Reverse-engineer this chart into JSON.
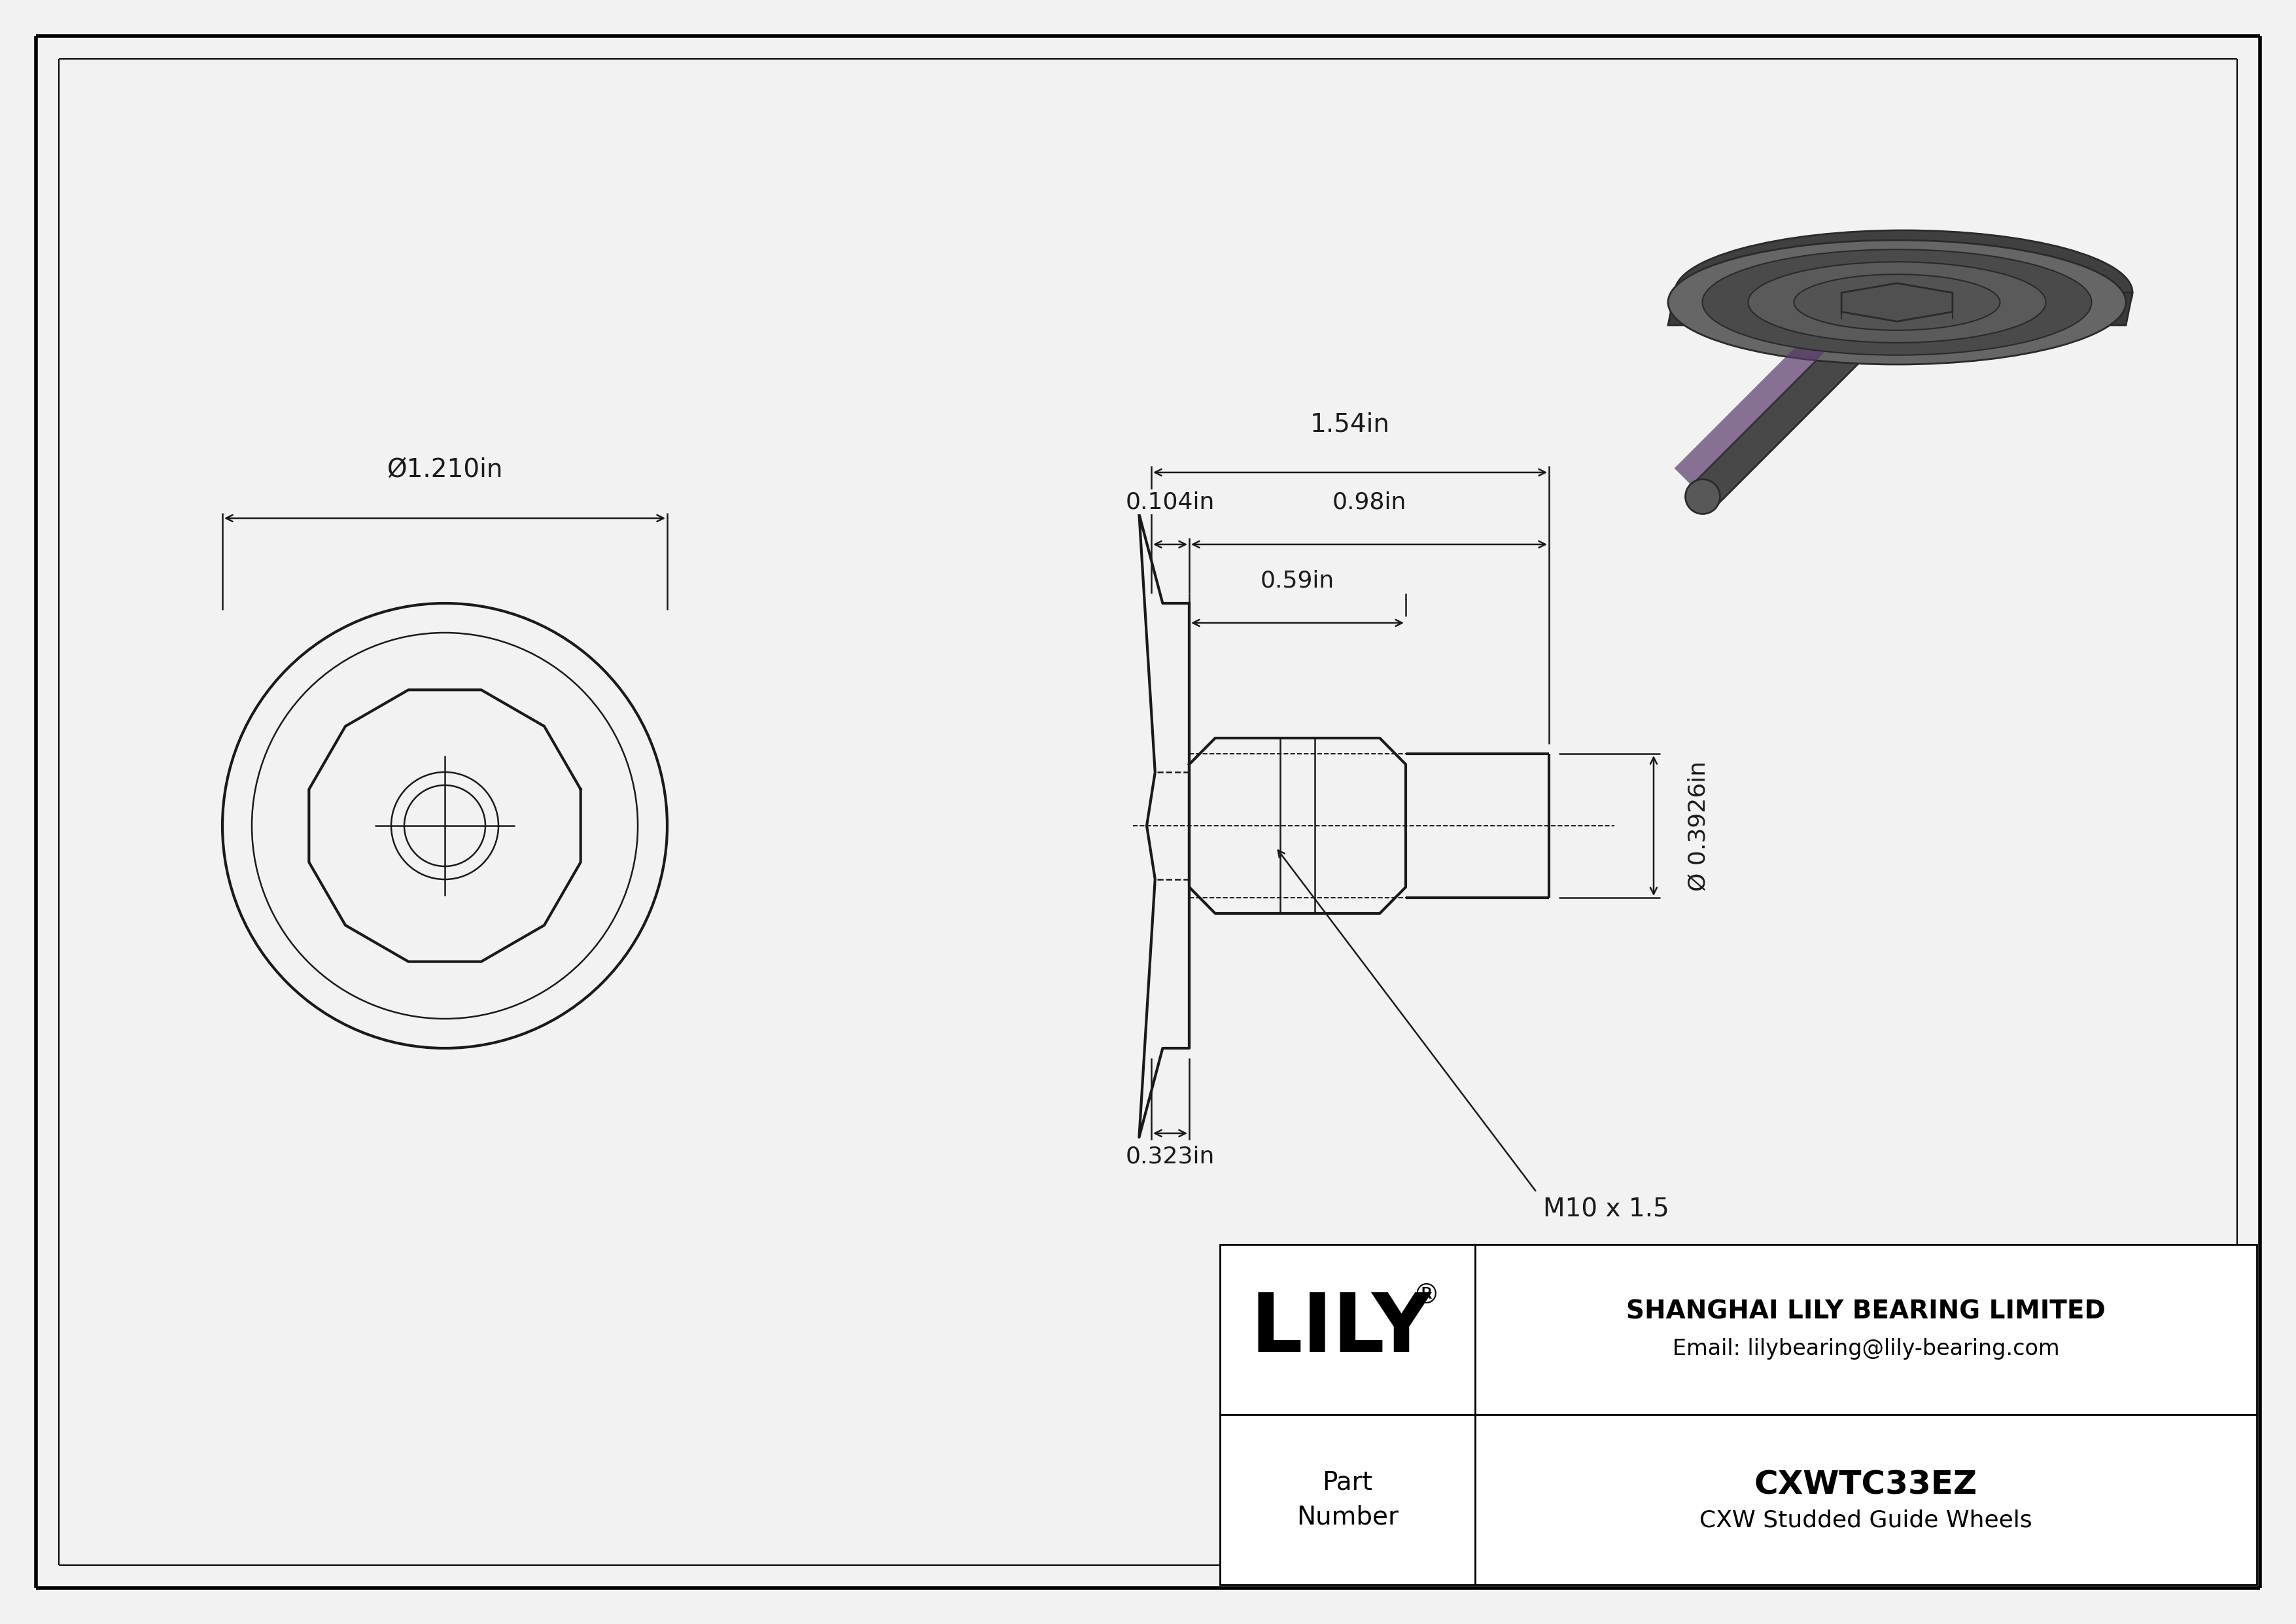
{
  "bg_color": "#f2f2f2",
  "line_color": "#1a1a1a",
  "company": "SHANGHAI LILY BEARING LIMITED",
  "email": "Email: lilybearing@lily-bearing.com",
  "part_number": "CXWTC33EZ",
  "part_desc": "CXW Studded Guide Wheels",
  "dim_diameter": "Ø1.210in",
  "dim_total_length": "1.54in",
  "dim_thread_offset": "0.104in",
  "dim_shaft_length": "0.98in",
  "dim_hex_length": "0.59in",
  "dim_wheel_width": "0.323in",
  "dim_stud_dia": "Ø 0.3926in",
  "dim_thread": "M10 x 1.5"
}
